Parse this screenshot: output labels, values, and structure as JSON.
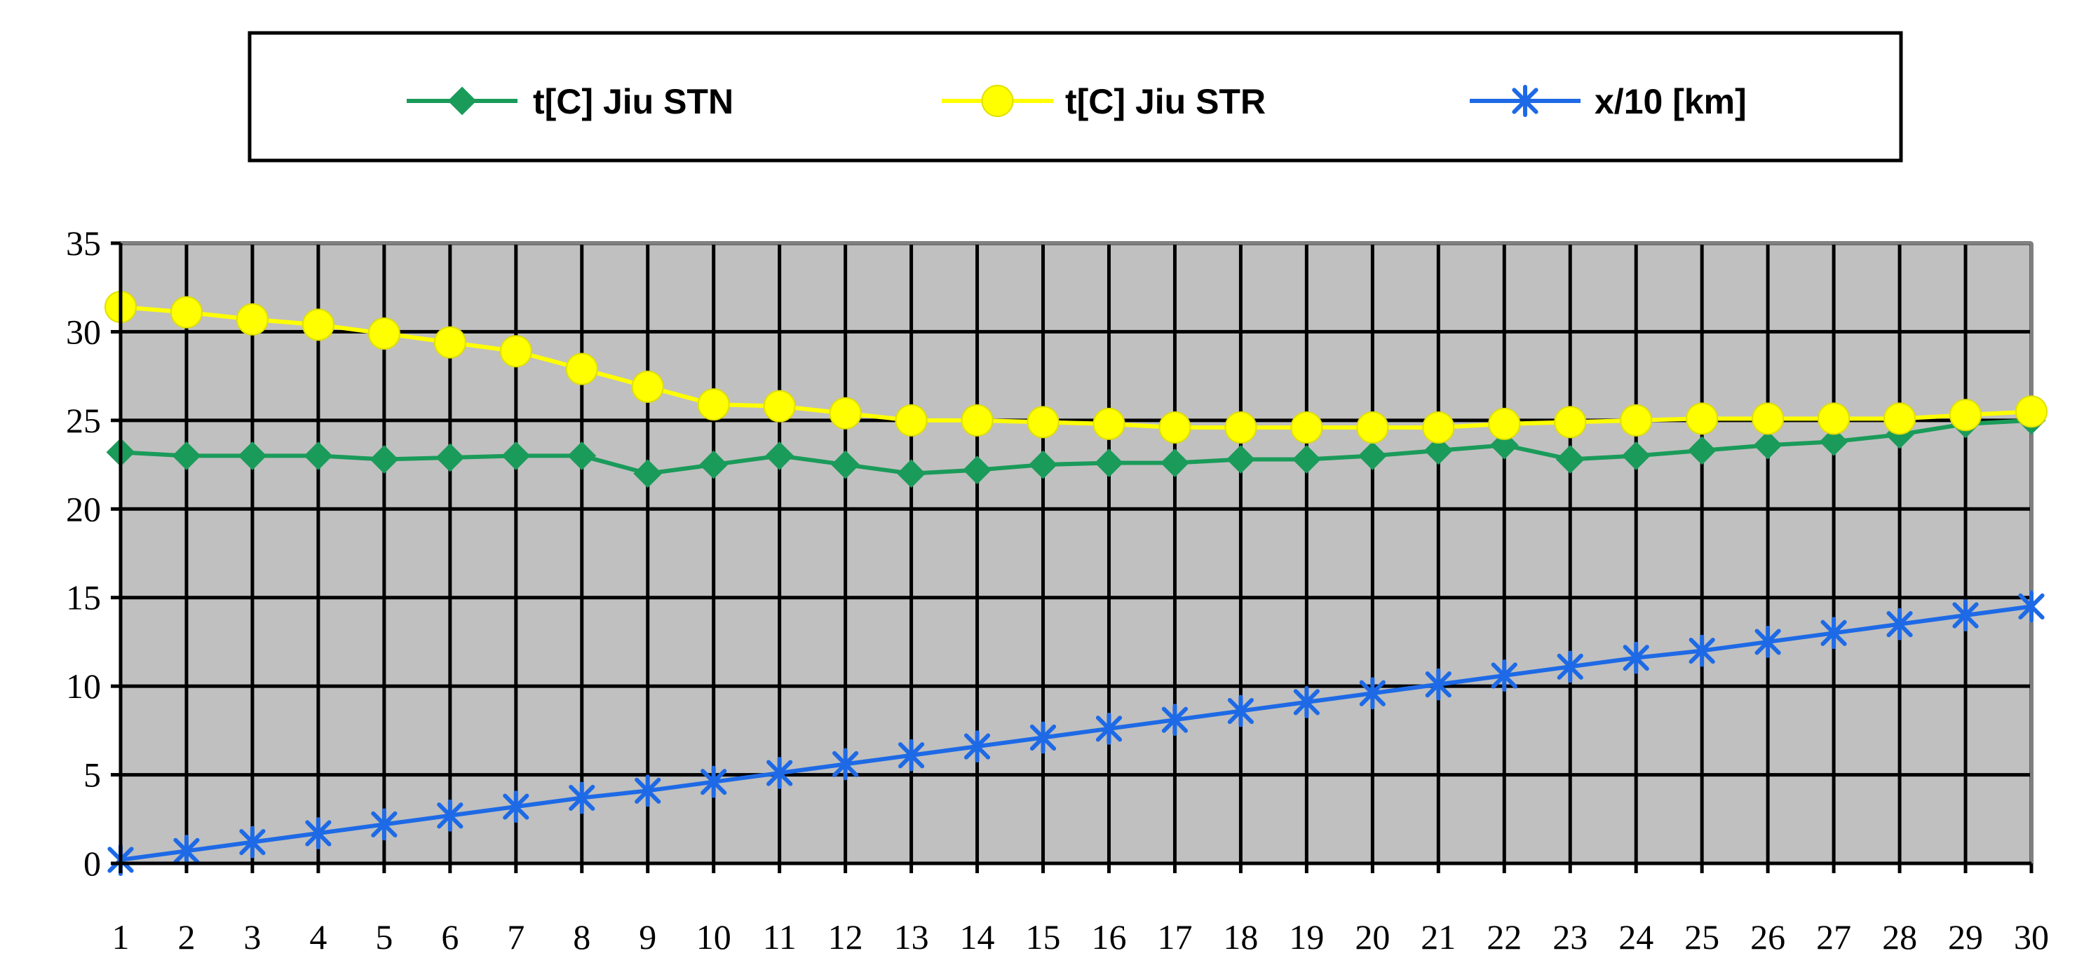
{
  "chart_data": {
    "type": "line",
    "title": "",
    "xlabel": "",
    "ylabel": "",
    "x": [
      1,
      2,
      3,
      4,
      5,
      6,
      7,
      8,
      9,
      10,
      11,
      12,
      13,
      14,
      15,
      16,
      17,
      18,
      19,
      20,
      21,
      22,
      23,
      24,
      25,
      26,
      27,
      28,
      29,
      30
    ],
    "x_tick_labels": [
      "1",
      "2",
      "3",
      "4",
      "5",
      "6",
      "7",
      "8",
      "9",
      "10",
      "11",
      "12",
      "13",
      "14",
      "15",
      "16",
      "17",
      "18",
      "19",
      "20",
      "21",
      "22",
      "23",
      "24",
      "25",
      "26",
      "27",
      "28",
      "29",
      "30"
    ],
    "ylim": [
      0,
      35
    ],
    "y_ticks": [
      0,
      5,
      10,
      15,
      20,
      25,
      30,
      35
    ],
    "y_tick_labels": [
      "0",
      "5",
      "10",
      "15",
      "20",
      "25",
      "30",
      "35"
    ],
    "grid": true,
    "plot_background": "#c0c0c0",
    "legend_placement": "top-center",
    "series": [
      {
        "name": "t[C] Jiu STN",
        "color": "#1a9b5a",
        "marker": "diamond",
        "values": [
          23.2,
          23.0,
          23.0,
          23.0,
          22.8,
          22.9,
          23.0,
          23.0,
          22.0,
          22.5,
          23.0,
          22.5,
          22.0,
          22.2,
          22.5,
          22.6,
          22.6,
          22.8,
          22.8,
          23.0,
          23.3,
          23.6,
          22.8,
          23.0,
          23.3,
          23.6,
          23.8,
          24.2,
          24.8,
          25.0
        ]
      },
      {
        "name": "t[C] Jiu STR",
        "color": "#ffff00",
        "marker": "circle",
        "values": [
          31.4,
          31.1,
          30.7,
          30.4,
          29.9,
          29.4,
          28.9,
          27.9,
          26.9,
          25.9,
          25.8,
          25.4,
          25.0,
          25.0,
          24.9,
          24.8,
          24.6,
          24.6,
          24.6,
          24.6,
          24.6,
          24.8,
          24.9,
          25.0,
          25.1,
          25.1,
          25.1,
          25.1,
          25.3,
          25.5
        ]
      },
      {
        "name": "x/10 [km]",
        "color": "#1e6ae6",
        "marker": "asterisk",
        "values": [
          0.2,
          0.7,
          1.2,
          1.7,
          2.2,
          2.7,
          3.2,
          3.7,
          4.1,
          4.6,
          5.1,
          5.6,
          6.1,
          6.6,
          7.1,
          7.6,
          8.1,
          8.6,
          9.1,
          9.6,
          10.1,
          10.6,
          11.1,
          11.6,
          12.0,
          12.5,
          13.0,
          13.5,
          14.0,
          14.5
        ]
      }
    ]
  }
}
